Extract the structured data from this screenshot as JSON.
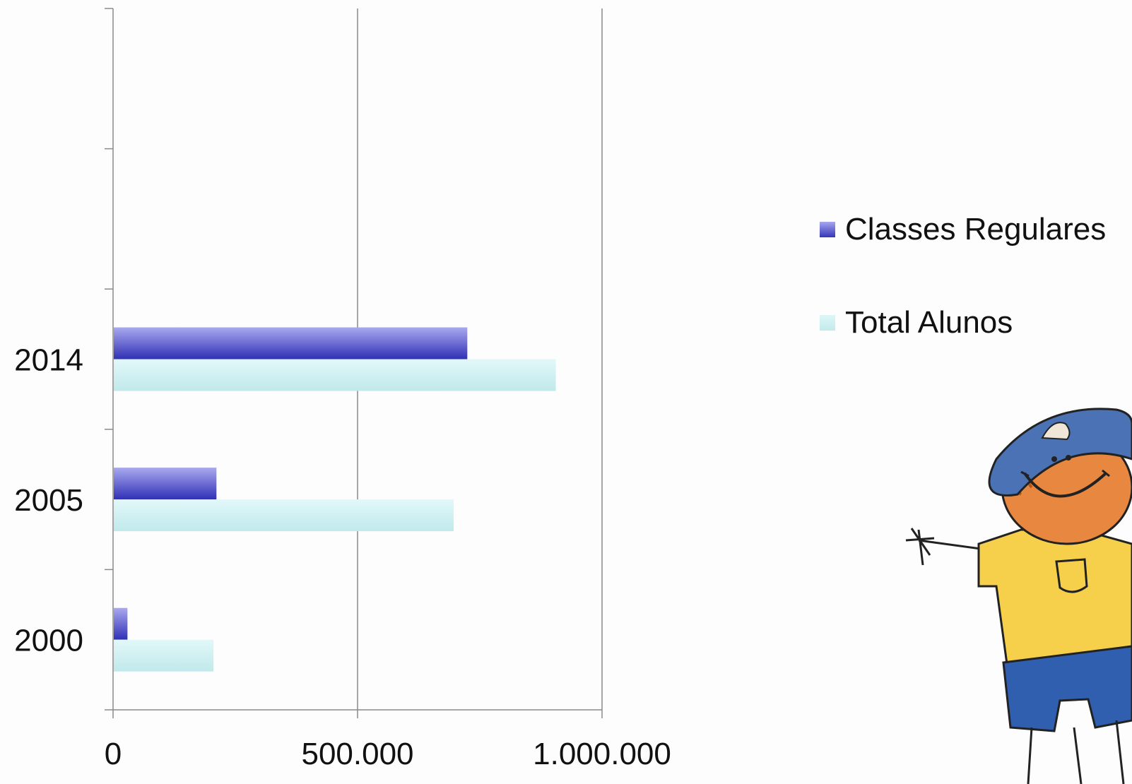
{
  "chart_data": {
    "type": "bar",
    "orientation": "horizontal",
    "categories": [
      "2000",
      "2005",
      "2014"
    ],
    "series": [
      {
        "name": "Classes Regulares",
        "values": [
          28000,
          210000,
          723000
        ],
        "color": "#4040c0"
      },
      {
        "name": "Total Alunos",
        "values": [
          204000,
          695000,
          904000
        ],
        "color": "#c8eef0"
      }
    ],
    "xlim": [
      0,
      1000000
    ],
    "xticks": [
      0,
      500000,
      1000000
    ],
    "xtick_labels": [
      "0",
      "500.000",
      "1.000.000"
    ],
    "grid": true,
    "legend_position": "right",
    "title": "",
    "xlabel": "",
    "ylabel": ""
  },
  "legend": {
    "items": [
      "Classes Regulares",
      "Total Alunos"
    ]
  },
  "illustration": {
    "icon": "cartoon-boy-icon"
  }
}
